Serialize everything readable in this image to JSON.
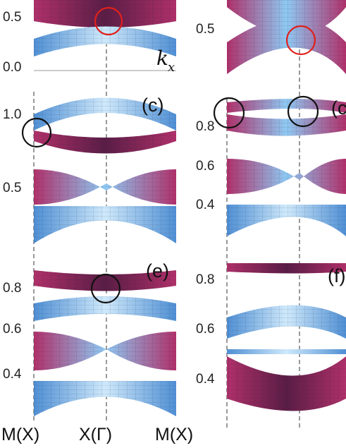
{
  "figure": {
    "panels": [
      {
        "id": "a",
        "label": "",
        "y_ticks": [
          "0.5",
          "0.0"
        ]
      },
      {
        "id": "b",
        "label": "",
        "y_ticks": [
          "0.5"
        ]
      },
      {
        "id": "c",
        "label": "(c)",
        "y_ticks": [
          "1.0",
          "0.5"
        ]
      },
      {
        "id": "d",
        "label": "(c",
        "y_ticks": [
          "0.8",
          "0.6",
          "0.4"
        ]
      },
      {
        "id": "e",
        "label": "(e)",
        "y_ticks": [
          "0.8",
          "0.6",
          "0.4"
        ]
      },
      {
        "id": "f",
        "label": "(f)",
        "y_ticks": [
          "0.8",
          "0.6",
          "0.4"
        ]
      }
    ],
    "axis_symbol": "k",
    "axis_symbol_sub": "x",
    "x_labels": [
      "M(X)",
      "X(Γ)",
      "M(X)"
    ],
    "colors": {
      "band_light": "#7fc1f0",
      "band_dark": "#6a1f4a",
      "band_mid": "#a8336a",
      "marker_red": "#e0201c",
      "marker_black": "#111111"
    }
  }
}
